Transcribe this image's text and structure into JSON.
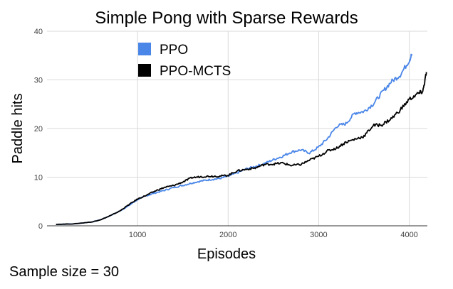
{
  "chart_data": {
    "type": "line",
    "title": "Simple Pong with Sparse Rewards",
    "xlabel": "Episodes",
    "ylabel": "Paddle hits",
    "xlim": [
      0,
      4200
    ],
    "ylim": [
      0,
      40
    ],
    "xticks": [
      1000,
      2000,
      3000,
      4000
    ],
    "xtick_labels": [
      "1000",
      "2000",
      "3000",
      "4000"
    ],
    "yticks": [
      0,
      10,
      20,
      30,
      40
    ],
    "ytick_labels": [
      "0",
      "10",
      "20",
      "30",
      "40"
    ],
    "grid": true,
    "legend_position": "top-center",
    "series": [
      {
        "name": "PPO",
        "color": "#4a86e8",
        "x": [
          100,
          300,
          500,
          600,
          700,
          800,
          900,
          1000,
          1100,
          1200,
          1300,
          1400,
          1500,
          1600,
          1700,
          1800,
          1900,
          2000,
          2100,
          2200,
          2300,
          2400,
          2500,
          2600,
          2700,
          2800,
          2900,
          3000,
          3100,
          3200,
          3300,
          3400,
          3500,
          3600,
          3700,
          3800,
          3900,
          4000,
          4030
        ],
        "y": [
          0.3,
          0.4,
          0.8,
          1.3,
          2.1,
          3.0,
          4.1,
          5.4,
          6.2,
          6.8,
          7.3,
          7.9,
          8.3,
          8.8,
          9.2,
          9.5,
          9.7,
          10.2,
          10.9,
          11.7,
          12.2,
          12.8,
          13.6,
          14.3,
          15.2,
          15.6,
          15.0,
          16.2,
          18.0,
          20.5,
          21.0,
          23.2,
          23.5,
          25.0,
          27.4,
          29.6,
          31.0,
          34.0,
          35.3
        ]
      },
      {
        "name": "PPO-MCTS",
        "color": "#000000",
        "x": [
          100,
          300,
          500,
          600,
          700,
          800,
          900,
          1000,
          1100,
          1200,
          1300,
          1400,
          1500,
          1600,
          1700,
          1800,
          1900,
          2000,
          2100,
          2200,
          2300,
          2400,
          2500,
          2600,
          2700,
          2800,
          2900,
          3000,
          3100,
          3200,
          3300,
          3400,
          3500,
          3600,
          3700,
          3800,
          3900,
          4000,
          4100,
          4150,
          4190
        ],
        "y": [
          0.3,
          0.4,
          0.8,
          1.3,
          2.1,
          3.0,
          4.3,
          5.5,
          6.3,
          7.2,
          7.9,
          8.3,
          9.0,
          9.9,
          10.1,
          10.2,
          10.2,
          10.4,
          11.3,
          11.6,
          11.9,
          12.6,
          12.7,
          12.9,
          12.4,
          12.6,
          13.5,
          14.3,
          15.4,
          16.0,
          17.2,
          17.8,
          18.4,
          20.6,
          20.8,
          22.0,
          23.8,
          26.0,
          27.2,
          27.6,
          31.6
        ]
      }
    ]
  },
  "footnote": "Sample size = 30"
}
